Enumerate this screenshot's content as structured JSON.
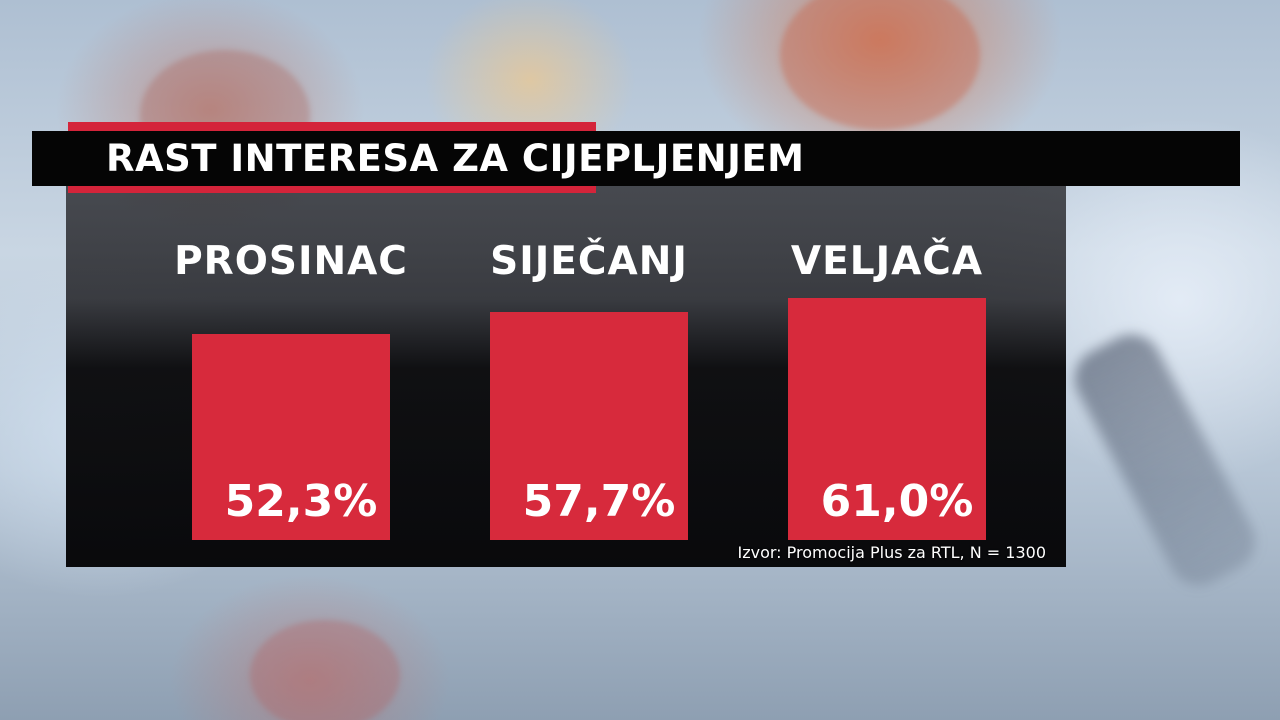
{
  "chart_data": {
    "type": "bar",
    "title": "RAST INTERESA ZA CIJEPLJENJEM",
    "categories": [
      "PROSINAC",
      "SIJEČANJ",
      "VELJAČA"
    ],
    "values": [
      52.3,
      57.7,
      61.0
    ],
    "value_labels": [
      "52,3%",
      "57,7%",
      "61,0%"
    ],
    "unit": "%",
    "source": "Izvor: Promocija Plus za RTL, N = 1300",
    "bar_color": "#d72a3c",
    "accent_color": "#d4243a",
    "grid": false,
    "legend": false
  }
}
